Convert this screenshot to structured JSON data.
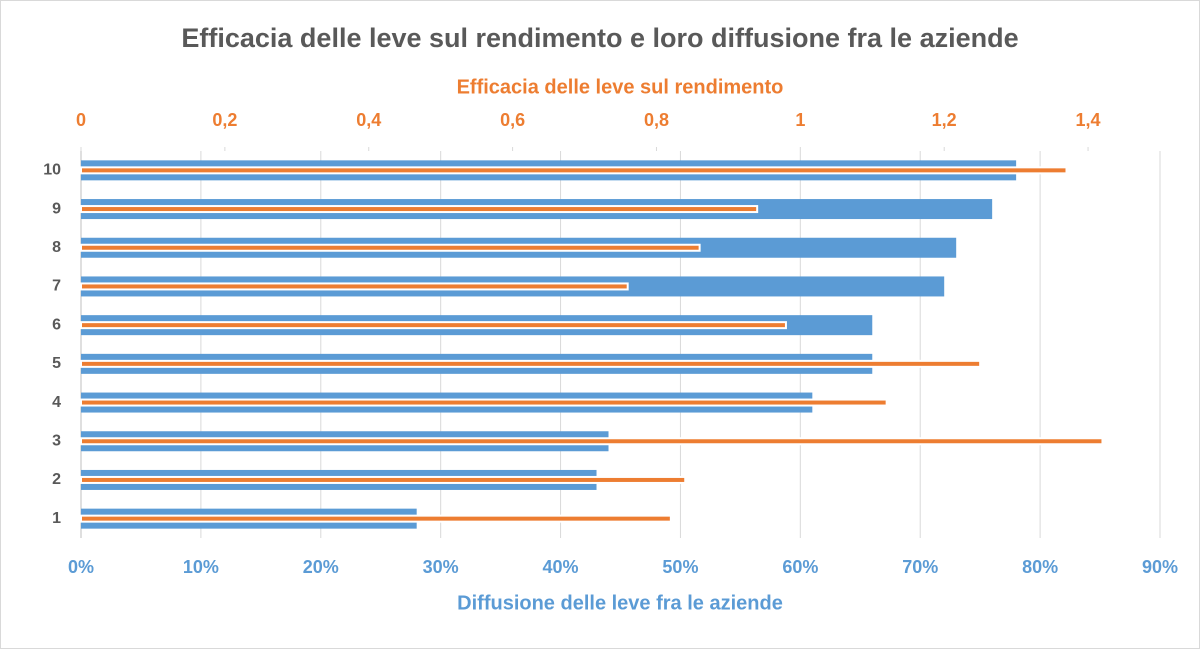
{
  "chart_data": {
    "type": "bar",
    "orientation": "horizontal",
    "title": "Efficacia delle leve sul rendimento e loro diffusione fra le aziende",
    "xlabel": "Diffusione delle leve fra le aziende",
    "x2label": "Efficacia delle leve sul rendimento",
    "categories": [
      "1",
      "2",
      "3",
      "4",
      "5",
      "6",
      "7",
      "8",
      "9",
      "10"
    ],
    "series": [
      {
        "color": "#5b9bd5",
        "values": [
          28,
          43,
          44,
          61,
          66,
          66,
          72,
          73,
          76,
          78
        ]
      },
      {
        "color": "#ed7d31",
        "axis": "x2",
        "values": [
          0.82,
          0.84,
          1.42,
          1.12,
          1.25,
          0.98,
          0.76,
          0.86,
          0.94,
          1.37
        ]
      }
    ],
    "xlim": [
      0,
      90
    ],
    "xticks": [
      {
        "value": 0,
        "label": "0%"
      },
      {
        "value": 10,
        "label": "10%"
      },
      {
        "value": 20,
        "label": "20%"
      },
      {
        "value": 30,
        "label": "30%"
      },
      {
        "value": 40,
        "label": "40%"
      },
      {
        "value": 50,
        "label": "50%"
      },
      {
        "value": 60,
        "label": "60%"
      },
      {
        "value": 70,
        "label": "70%"
      },
      {
        "value": 80,
        "label": "80%"
      },
      {
        "value": 90,
        "label": "90%"
      }
    ],
    "x2lim": [
      0,
      1.5
    ],
    "x2ticks": [
      0,
      {
        "value": 0.2,
        "label": "0,2"
      },
      {
        "value": 0.4,
        "label": "0,4"
      },
      {
        "value": 0.6,
        "label": "0,6"
      },
      {
        "value": 0.8,
        "label": "0,8"
      },
      1,
      {
        "value": 1.2,
        "label": "1,2"
      },
      {
        "value": 1.4,
        "label": "1,4"
      }
    ],
    "grid": true
  }
}
